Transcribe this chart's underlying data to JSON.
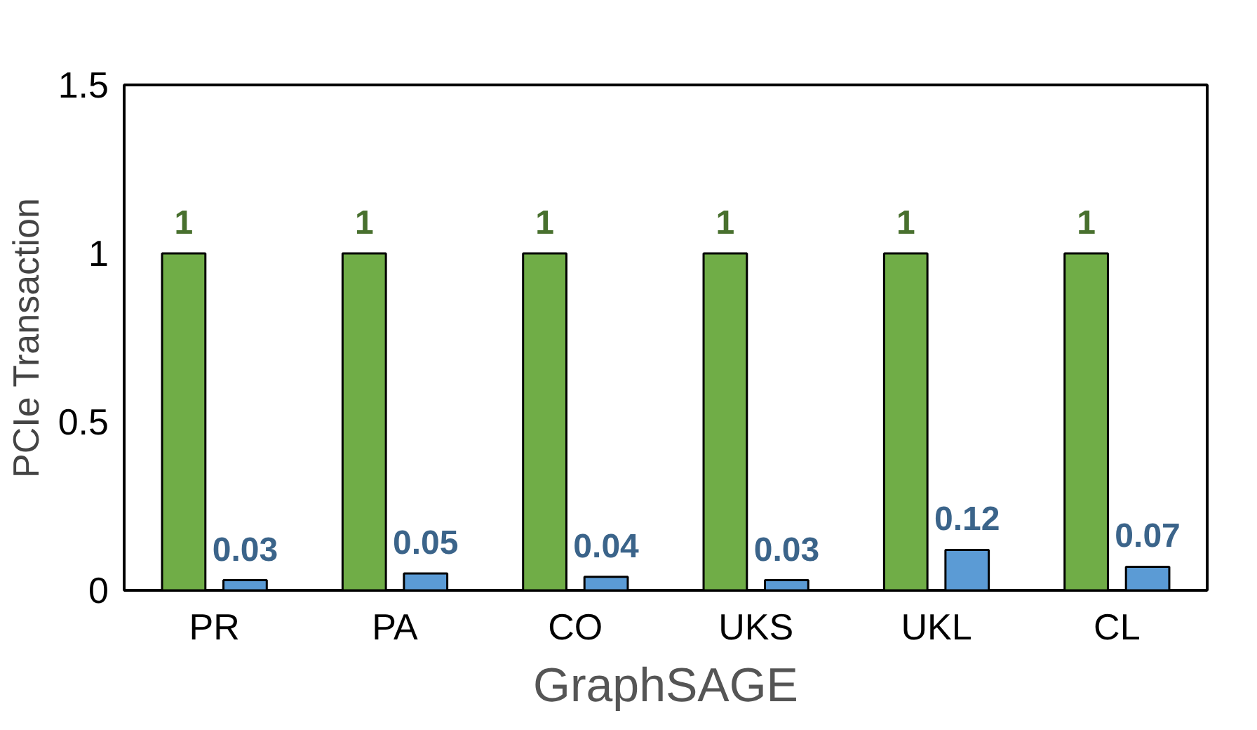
{
  "chart_data": {
    "type": "bar",
    "xlabel": "GraphSAGE",
    "ylabel": "PCIe Transaction",
    "categories": [
      "PR",
      "PA",
      "CO",
      "UKS",
      "UKL",
      "CL"
    ],
    "series": [
      {
        "color": "#70ad47",
        "values": [
          1,
          1,
          1,
          1,
          1,
          1
        ]
      },
      {
        "color": "#5b9bd5",
        "values": [
          0.03,
          0.05,
          0.04,
          0.03,
          0.12,
          0.07
        ]
      }
    ],
    "ylim": [
      0,
      1.5
    ],
    "yticks": [
      0,
      0.5,
      1,
      1.5
    ],
    "grid": false,
    "data_labels": true
  }
}
